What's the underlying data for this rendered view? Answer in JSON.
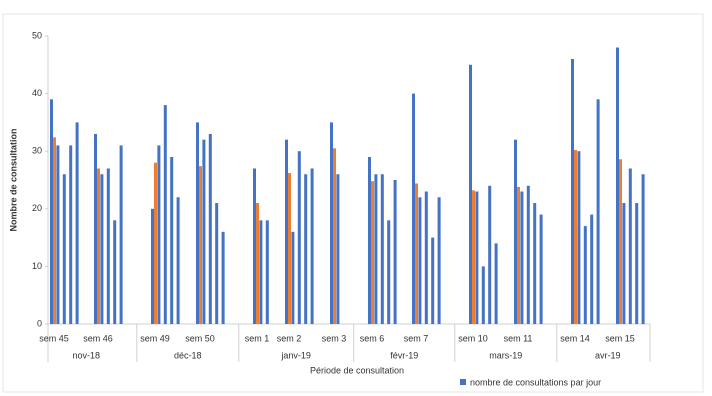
{
  "chart_data": {
    "type": "bar",
    "y_label": "Nombre de consultation",
    "x_label": "Période de consultation",
    "ylim": [
      0,
      50
    ],
    "yticks": [
      0,
      10,
      20,
      30,
      40,
      50
    ],
    "series": [
      {
        "name": "nombre de consultations par jour",
        "color": "#4472c4"
      }
    ],
    "average_color": "#ed7d31",
    "months": [
      {
        "label": "nov-18",
        "weeks": [
          {
            "label": "sem 45",
            "values": [
              39,
              31,
              26,
              31,
              35
            ],
            "average": 32.4
          },
          {
            "label": "sem 46",
            "values": [
              33,
              26,
              27,
              18,
              31
            ],
            "average": 27
          }
        ]
      },
      {
        "label": "déc-18",
        "weeks": [
          {
            "label": "sem 49",
            "values": [
              20,
              31,
              38,
              29,
              22
            ],
            "average": 28
          },
          {
            "label": "sem 50",
            "values": [
              35,
              32,
              33,
              21,
              16
            ],
            "average": 27.4
          }
        ]
      },
      {
        "label": "janv-19",
        "weeks": [
          {
            "label": "sem 1",
            "values": [
              27,
              18,
              18
            ],
            "average": 21
          },
          {
            "label": "sem 2",
            "values": [
              32,
              16,
              30,
              26,
              27
            ],
            "average": 26.2
          },
          {
            "label": "sem 3",
            "values": [
              35,
              26
            ],
            "average": 30.5
          }
        ]
      },
      {
        "label": "févr-19",
        "weeks": [
          {
            "label": "sem 6",
            "values": [
              29,
              26,
              26,
              18,
              25
            ],
            "average": 24.8
          },
          {
            "label": "sem 7",
            "values": [
              40,
              22,
              23,
              15,
              22
            ],
            "average": 24.4
          }
        ]
      },
      {
        "label": "mars-19",
        "weeks": [
          {
            "label": "sem 10",
            "values": [
              45,
              23,
              10,
              24,
              14
            ],
            "average": 23.2
          },
          {
            "label": "sem 11",
            "values": [
              32,
              23,
              24,
              21,
              19
            ],
            "average": 23.8
          }
        ]
      },
      {
        "label": "avr-19",
        "weeks": [
          {
            "label": "sem 14",
            "values": [
              46,
              30,
              17,
              19,
              39
            ],
            "average": 30.2
          },
          {
            "label": "sem 15",
            "values": [
              48,
              21,
              27,
              21,
              26
            ],
            "average": 28.6
          }
        ]
      }
    ]
  }
}
